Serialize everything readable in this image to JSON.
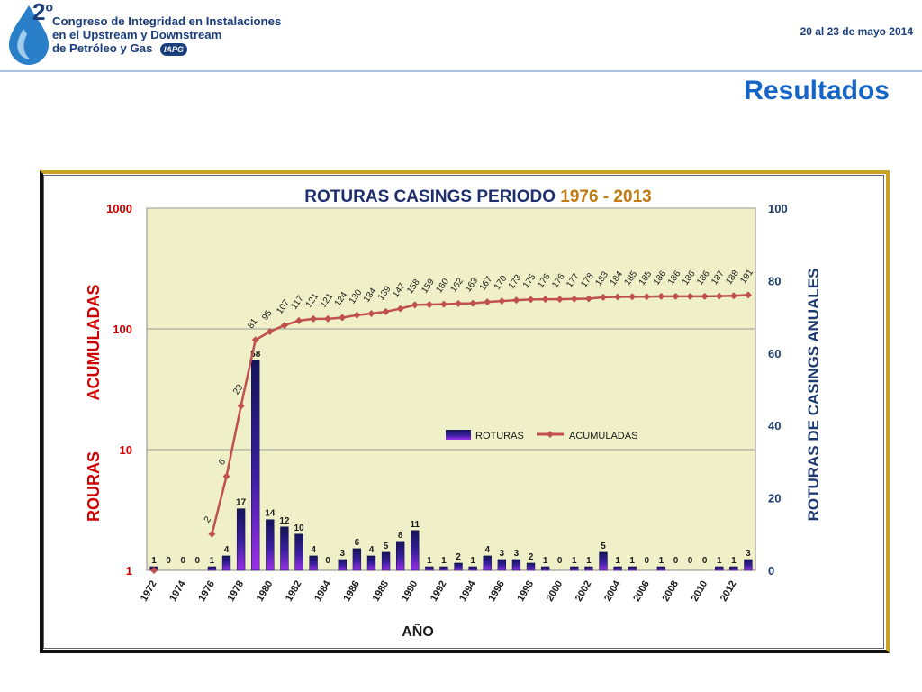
{
  "header": {
    "logo_number": "2",
    "logo_superscript": "o",
    "logo_lines": [
      "Congreso de Integridad en Instalaciones",
      "en el Upstream y Downstream",
      "de Petróleo y Gas"
    ],
    "logo_badge": "IAPG",
    "date": "20 al 23 de mayo 2014"
  },
  "page_title": "Resultados",
  "colors": {
    "brand": "#1a3d7c",
    "title_blue": "#1565c8",
    "plot_bg": "#f0f0c8",
    "line": "#c0504d",
    "bar_top": "#1a1a6a",
    "bar_bottom": "#8a2be2",
    "axis_red": "#d00000",
    "axis_navy": "#1f3b6e"
  },
  "chart_data": {
    "type": "bar+line",
    "title_part1": "ROTURAS CASINGS PERIODO ",
    "title_part2": "1976 - 2013",
    "xlabel": "AÑO",
    "ylabel_left_word1": "ROURAS",
    "ylabel_left_word2": "ACUMULADAS",
    "ylabel_right": "ROTURAS DE CASINGS ANUALES",
    "left_axis_scale": "log",
    "left_ylim": [
      1,
      1000
    ],
    "left_ticks": [
      "1",
      "10",
      "100",
      "1000"
    ],
    "right_ylim": [
      0,
      100
    ],
    "right_ticks": [
      "0",
      "20",
      "40",
      "60",
      "80",
      "100"
    ],
    "grid": true,
    "legend": {
      "position": "center-right",
      "entries": [
        "ROTURAS",
        "ACUMULADAS"
      ]
    },
    "categories": [
      1972,
      1973,
      1974,
      1975,
      1976,
      1977,
      1978,
      1979,
      1980,
      1981,
      1982,
      1983,
      1984,
      1985,
      1986,
      1987,
      1988,
      1989,
      1990,
      1991,
      1992,
      1993,
      1994,
      1995,
      1996,
      1997,
      1998,
      1999,
      2000,
      2001,
      2002,
      2003,
      2004,
      2005,
      2006,
      2007,
      2008,
      2009,
      2010,
      2011,
      2012,
      2013
    ],
    "x_tick_labels": [
      "1972",
      "1974",
      "1976",
      "1978",
      "1980",
      "1982",
      "1984",
      "1986",
      "1988",
      "1990",
      "1992",
      "1994",
      "1996",
      "1998",
      "2000",
      "2002",
      "2004",
      "2006",
      "2008",
      "2010",
      "2012"
    ],
    "series": [
      {
        "name": "ROTURAS",
        "axis": "right",
        "values": [
          1,
          0,
          0,
          0,
          1,
          4,
          17,
          58,
          14,
          12,
          10,
          4,
          0,
          3,
          6,
          4,
          5,
          8,
          11,
          1,
          1,
          2,
          1,
          4,
          3,
          3,
          2,
          1,
          0,
          1,
          1,
          5,
          1,
          1,
          0,
          1,
          0,
          0,
          0,
          1,
          1,
          3
        ]
      },
      {
        "name": "ACUMULADAS",
        "axis": "left",
        "values": [
          1,
          null,
          null,
          null,
          2,
          6,
          23,
          81,
          95,
          107,
          117,
          121,
          121,
          124,
          130,
          134,
          139,
          147,
          158,
          159,
          160,
          162,
          163,
          167,
          170,
          173,
          175,
          176,
          176,
          177,
          178,
          183,
          184,
          185,
          185,
          186,
          186,
          186,
          186,
          187,
          188,
          191
        ],
        "labels": [
          "",
          "",
          "",
          "",
          "2",
          "6",
          "23",
          "81",
          "95",
          "107",
          "117",
          "121",
          "121",
          "124",
          "130",
          "134",
          "139",
          "147",
          "158",
          "159",
          "160",
          "162",
          "163",
          "167",
          "170",
          "173",
          "175",
          "176",
          "176",
          "177",
          "178",
          "183",
          "184",
          "185",
          "185",
          "186",
          "186",
          "186",
          "186",
          "187",
          "188",
          "191"
        ]
      }
    ]
  }
}
